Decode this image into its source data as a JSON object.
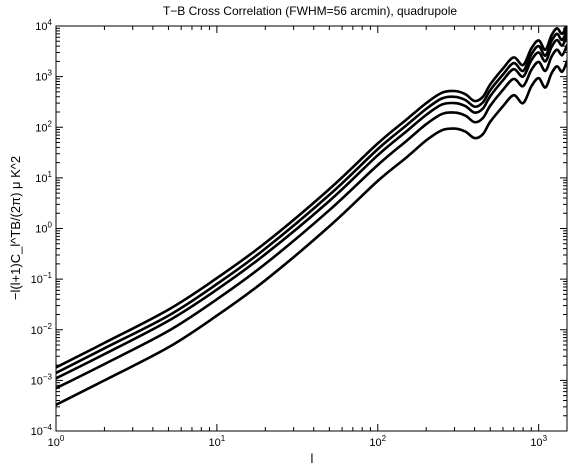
{
  "chart_data": {
    "type": "line",
    "title": "T−B Cross Correlation (FWHM=56 arcmin), quadrupole",
    "xlabel": "l",
    "ylabel": "−l(l+1)C_l^TB/(2π) μ K^2",
    "xscale": "log",
    "yscale": "log",
    "xlim": [
      1,
      1500
    ],
    "ylim": [
      0.0001,
      10000
    ],
    "grid": false,
    "x_ticks": [
      {
        "base": "10",
        "exp": "0"
      },
      {
        "base": "10",
        "exp": "1"
      },
      {
        "base": "10",
        "exp": "2"
      },
      {
        "base": "10",
        "exp": "3"
      }
    ],
    "y_ticks": [
      {
        "base": "10",
        "exp": "−4"
      },
      {
        "base": "10",
        "exp": "−3"
      },
      {
        "base": "10",
        "exp": "−2"
      },
      {
        "base": "10",
        "exp": "−1"
      },
      {
        "base": "10",
        "exp": "0"
      },
      {
        "base": "10",
        "exp": "1"
      },
      {
        "base": "10",
        "exp": "2"
      },
      {
        "base": "10",
        "exp": "3"
      },
      {
        "base": "10",
        "exp": "4"
      }
    ],
    "x": [
      1,
      2,
      5,
      10,
      20,
      50,
      100,
      150,
      200,
      250,
      300,
      350,
      400,
      450,
      500,
      600,
      700,
      800,
      900,
      1000,
      1100,
      1200,
      1300,
      1400,
      1500
    ],
    "series": [
      {
        "values": [
          0.0018,
          0.0055,
          0.025,
          0.105,
          0.52,
          6.0,
          48,
          140,
          300,
          480,
          520,
          450,
          330,
          400,
          700,
          1450,
          2400,
          1700,
          3600,
          5200,
          3400,
          6500,
          9000,
          7000,
          11000
        ]
      },
      {
        "values": [
          0.0014,
          0.0043,
          0.019,
          0.08,
          0.4,
          4.6,
          37,
          108,
          230,
          370,
          400,
          345,
          255,
          310,
          540,
          1100,
          1850,
          1300,
          2750,
          4000,
          2600,
          5000,
          7000,
          5300,
          8500
        ]
      },
      {
        "values": [
          0.0011,
          0.0033,
          0.015,
          0.062,
          0.31,
          3.5,
          28,
          82,
          175,
          280,
          300,
          262,
          195,
          235,
          410,
          850,
          1400,
          1000,
          2100,
          3000,
          2000,
          3800,
          5300,
          4100,
          6500
        ]
      },
      {
        "values": [
          0.0007,
          0.0021,
          0.0095,
          0.04,
          0.2,
          2.3,
          18,
          53,
          115,
          182,
          195,
          170,
          126,
          152,
          265,
          550,
          900,
          650,
          1350,
          1950,
          1300,
          2450,
          3400,
          2650,
          4200
        ]
      },
      {
        "values": [
          0.00033,
          0.001,
          0.0045,
          0.019,
          0.095,
          1.1,
          8.7,
          25,
          55,
          87,
          94,
          82,
          61,
          73,
          128,
          260,
          430,
          300,
          640,
          930,
          610,
          1150,
          1600,
          1250,
          2000
        ]
      }
    ]
  }
}
